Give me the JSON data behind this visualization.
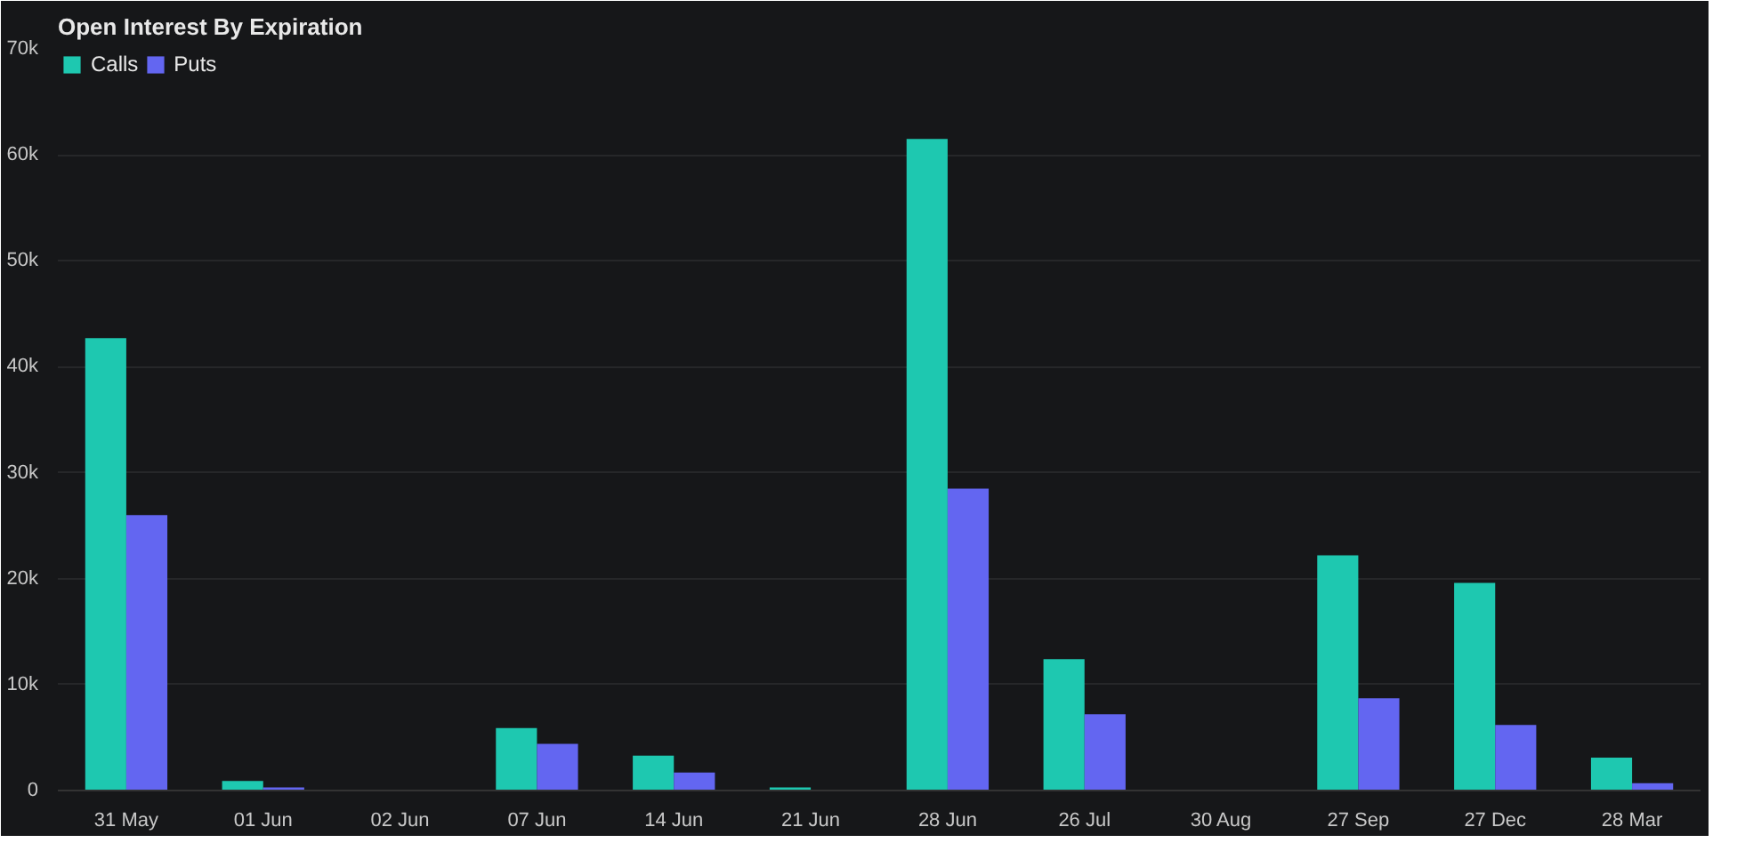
{
  "chart_data": {
    "type": "bar",
    "title": "Open Interest By Expiration",
    "categories": [
      "31 May",
      "01 Jun",
      "02 Jun",
      "07 Jun",
      "14 Jun",
      "21 Jun",
      "28 Jun",
      "26 Jul",
      "30 Aug",
      "27 Sep",
      "27 Dec",
      "28 Mar"
    ],
    "series": [
      {
        "name": "Calls",
        "color": "#1ec8b0",
        "values": [
          42700,
          900,
          0,
          5900,
          3300,
          300,
          61500,
          12400,
          0,
          22200,
          19600,
          3100
        ]
      },
      {
        "name": "Puts",
        "color": "#6366f1",
        "values": [
          26000,
          300,
          0,
          4400,
          1700,
          0,
          28500,
          7200,
          0,
          8700,
          6200,
          700
        ]
      }
    ],
    "ylim": [
      0,
      70000
    ],
    "yticks": [
      {
        "value": 0,
        "label": "0"
      },
      {
        "value": 10000,
        "label": "10k"
      },
      {
        "value": 20000,
        "label": "20k"
      },
      {
        "value": 30000,
        "label": "30k"
      },
      {
        "value": 40000,
        "label": "40k"
      },
      {
        "value": 50000,
        "label": "50k"
      },
      {
        "value": 60000,
        "label": "60k"
      },
      {
        "value": 70000,
        "label": "70k"
      }
    ],
    "grid": "y",
    "legend": "top left"
  }
}
